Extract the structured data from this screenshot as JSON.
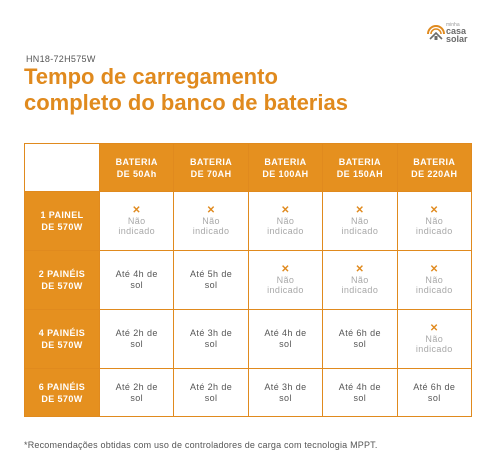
{
  "brand": {
    "small": "minha",
    "line1": "casa",
    "line2": "solar",
    "color": "#e08a1e"
  },
  "model": "HN18-72H575W",
  "title": {
    "line1": "Tempo de carregamento",
    "line2": "completo do banco de baterias"
  },
  "table": {
    "columns": [
      {
        "l1": "BATERIA",
        "l2": "DE 50Ah"
      },
      {
        "l1": "BATERIA",
        "l2": "DE 70AH"
      },
      {
        "l1": "BATERIA",
        "l2": "DE 100AH"
      },
      {
        "l1": "BATERIA",
        "l2": "DE 150AH"
      },
      {
        "l1": "BATERIA",
        "l2": "DE 220AH"
      }
    ],
    "rows": [
      {
        "h1": "1 PAINEL",
        "h2": "DE 570W",
        "cells": [
          {
            "mark": "✕",
            "l1": "Não",
            "l2": "indicado"
          },
          {
            "mark": "✕",
            "l1": "Não",
            "l2": "indicado"
          },
          {
            "mark": "✕",
            "l1": "Não",
            "l2": "indicado"
          },
          {
            "mark": "✕",
            "l1": "Não",
            "l2": "indicado"
          },
          {
            "mark": "✕",
            "l1": "Não",
            "l2": "indicado"
          }
        ]
      },
      {
        "h1": "2 PAINÉIS",
        "h2": "DE 570W",
        "cells": [
          {
            "l1": "Até 4h de",
            "l2": "sol"
          },
          {
            "l1": "Até 5h de",
            "l2": "sol"
          },
          {
            "mark": "✕",
            "l1": "Não",
            "l2": "indicado"
          },
          {
            "mark": "✕",
            "l1": "Não",
            "l2": "indicado"
          },
          {
            "mark": "✕",
            "l1": "Não",
            "l2": "indicado"
          }
        ]
      },
      {
        "h1": "4 PAINÉIS",
        "h2": "DE 570W",
        "cells": [
          {
            "l1": "Até 2h de",
            "l2": "sol"
          },
          {
            "l1": "Até 3h de",
            "l2": "sol"
          },
          {
            "l1": "Até 4h de",
            "l2": "sol"
          },
          {
            "l1": "Até 6h de",
            "l2": "sol"
          },
          {
            "mark": "✕",
            "l1": "Não",
            "l2": "indicado"
          }
        ]
      },
      {
        "h1": "6 PAINÉIS",
        "h2": "DE 570W",
        "cells": [
          {
            "l1": "Até 2h de",
            "l2": "sol"
          },
          {
            "l1": "Até 2h de",
            "l2": "sol"
          },
          {
            "l1": "Até 3h de",
            "l2": "sol"
          },
          {
            "l1": "Até 4h de",
            "l2": "sol"
          },
          {
            "l1": "Até 6h de",
            "l2": "sol"
          }
        ]
      }
    ]
  },
  "footnote": "*Recomendações obtidas com uso de controladores de carga com tecnologia MPPT."
}
